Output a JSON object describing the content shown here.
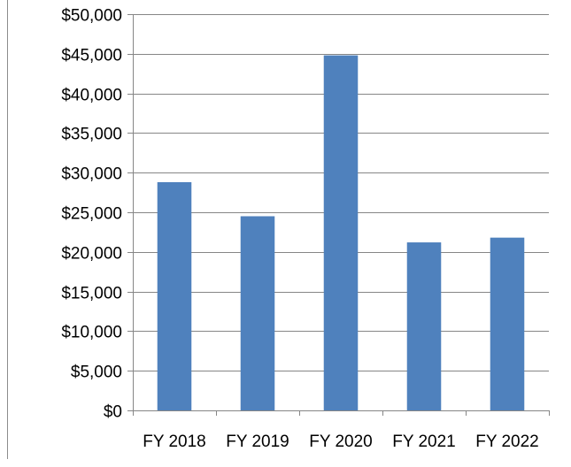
{
  "chart_data": {
    "type": "bar",
    "title": "",
    "xlabel": "",
    "ylabel": "",
    "categories": [
      "FY 2018",
      "FY 2019",
      "FY 2020",
      "FY 2021",
      "FY 2022"
    ],
    "values": [
      28800,
      24500,
      44800,
      21200,
      21800
    ],
    "ylim": [
      0,
      50000
    ],
    "y_ticks": [
      0,
      5000,
      10000,
      15000,
      20000,
      25000,
      30000,
      35000,
      40000,
      45000,
      50000
    ],
    "y_tick_labels": [
      "$0",
      "$5,000",
      "$10,000",
      "$15,000",
      "$20,000",
      "$25,000",
      "$30,000",
      "$35,000",
      "$40,000",
      "$45,000",
      "$50,000"
    ],
    "grid": true,
    "legend": "none",
    "bar_color": "#4f81bd",
    "grid_color": "#868686",
    "axis_color": "#868686"
  }
}
